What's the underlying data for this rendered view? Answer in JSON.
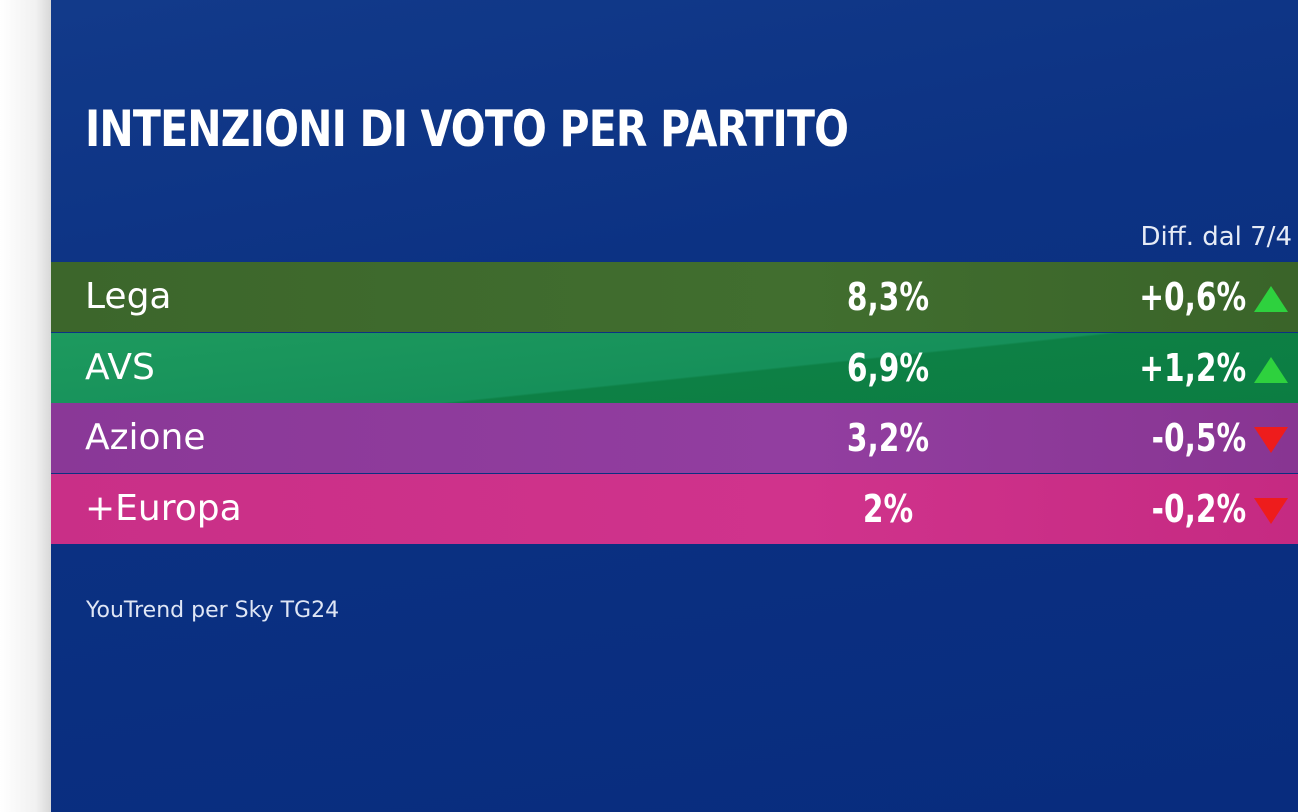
{
  "title": "INTENZIONI DI VOTO PER PARTITO",
  "diff_header": "Diff. dal 7/4",
  "source": "YouTrend per Sky TG24",
  "colors": {
    "up_arrow": "#2ed13e",
    "down_arrow": "#ee1c1c"
  },
  "chart_data": {
    "type": "table",
    "title": "INTENZIONI DI VOTO PER PARTITO",
    "columns": [
      "",
      "",
      "Diff. dal 7/4"
    ],
    "rows": [
      {
        "party": "Lega",
        "value": "8,3%",
        "diff": "+0,6%",
        "trend": "up",
        "color": "#3e6a2c"
      },
      {
        "party": "AVS",
        "value": "6,9%",
        "diff": "+1,2%",
        "trend": "up",
        "color": "#16905a"
      },
      {
        "party": "Azione",
        "value": "3,2%",
        "diff": "-0,5%",
        "trend": "down",
        "color": "#8c3a98"
      },
      {
        "party": "+Europa",
        "value": "2%",
        "diff": "-0,2%",
        "trend": "down",
        "color": "#cc2f88"
      }
    ],
    "source": "YouTrend per Sky TG24"
  }
}
